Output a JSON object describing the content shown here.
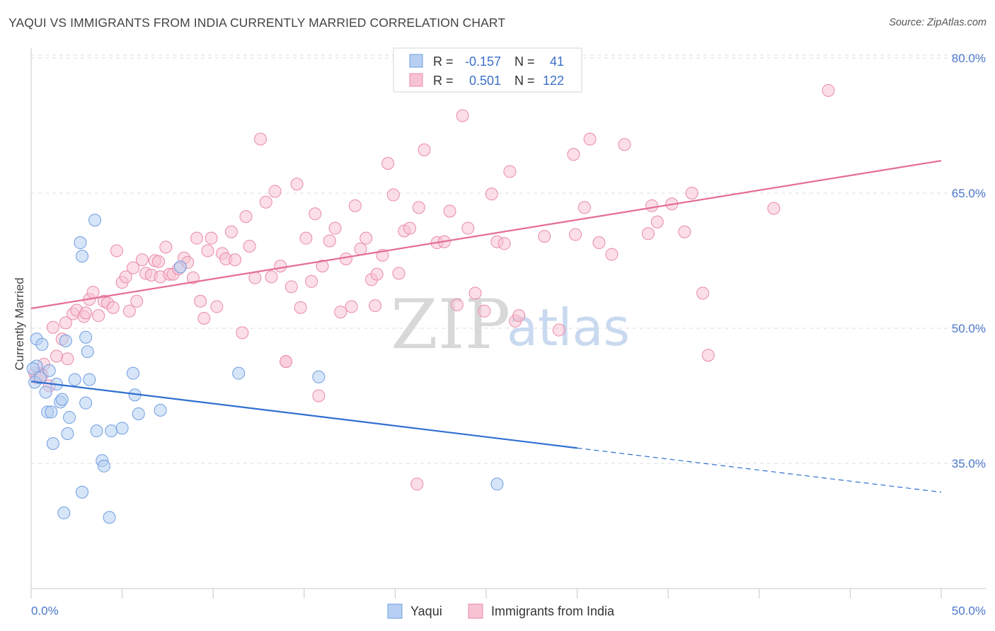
{
  "title": "YAQUI VS IMMIGRANTS FROM INDIA CURRENTLY MARRIED CORRELATION CHART",
  "source": "Source: ZipAtlas.com",
  "watermark": {
    "zip": "ZIP",
    "atlas": "atlas"
  },
  "colors": {
    "blue_fill": "#b7cff2",
    "blue_stroke": "#6f9de0",
    "blue_line": "#2f6fd0",
    "pink_fill": "#f7c3d3",
    "pink_stroke": "#e98aa8",
    "pink_line": "#e46d96",
    "tick": "#4b77c9",
    "grid": "#dcdcdc"
  },
  "legend_top": {
    "rows": [
      {
        "r_label": "R =",
        "r_value": "-0.157",
        "n_label": "N =",
        "n_value": "41"
      },
      {
        "r_label": "R =",
        "r_value": "0.501",
        "n_label": "N =",
        "n_value": "122"
      }
    ]
  },
  "legend_bottom": [
    "Yaqui",
    "Immigrants from India"
  ],
  "chart_data": {
    "type": "scatter",
    "title": "YAQUI VS IMMIGRANTS FROM INDIA CURRENTLY MARRIED CORRELATION CHART",
    "ylabel": "Currently Married",
    "xlabel": "",
    "xlim": [
      0,
      50
    ],
    "ylim": [
      20,
      83
    ],
    "x_tick_labels": [
      "0.0%",
      "50.0%"
    ],
    "y_ticks": [
      35,
      50,
      65,
      80
    ],
    "y_tick_labels": [
      "35.0%",
      "50.0%",
      "65.0%",
      "80.0%"
    ],
    "grid": "horizontal dashed",
    "series": [
      {
        "name": "Yaqui",
        "color": "#b7cff2",
        "trend": {
          "x0": 0,
          "y0": 44.1,
          "x1": 30,
          "y1": 36.7,
          "dashed_to_x": 50,
          "dashed_to_y": 31.8
        },
        "points": [
          [
            0.2,
            44.0
          ],
          [
            0.3,
            45.8
          ],
          [
            0.3,
            48.8
          ],
          [
            0.5,
            44.5
          ],
          [
            0.6,
            48.2
          ],
          [
            0.8,
            42.9
          ],
          [
            0.9,
            40.7
          ],
          [
            1.0,
            45.3
          ],
          [
            1.1,
            40.7
          ],
          [
            1.2,
            37.2
          ],
          [
            1.4,
            43.8
          ],
          [
            1.6,
            41.8
          ],
          [
            1.7,
            42.1
          ],
          [
            1.8,
            29.5
          ],
          [
            1.9,
            48.6
          ],
          [
            2.0,
            38.3
          ],
          [
            2.1,
            40.1
          ],
          [
            2.4,
            44.3
          ],
          [
            2.7,
            59.5
          ],
          [
            2.8,
            58.0
          ],
          [
            2.8,
            31.8
          ],
          [
            3.0,
            41.7
          ],
          [
            3.0,
            49.0
          ],
          [
            3.1,
            47.4
          ],
          [
            3.2,
            44.3
          ],
          [
            3.5,
            62.0
          ],
          [
            3.6,
            38.6
          ],
          [
            3.9,
            35.3
          ],
          [
            4.0,
            34.7
          ],
          [
            4.3,
            29.0
          ],
          [
            4.4,
            38.6
          ],
          [
            5.0,
            38.9
          ],
          [
            5.6,
            45.0
          ],
          [
            5.7,
            42.6
          ],
          [
            5.9,
            40.5
          ],
          [
            7.1,
            40.9
          ],
          [
            8.2,
            56.8
          ],
          [
            11.4,
            45.0
          ],
          [
            15.8,
            44.6
          ],
          [
            25.6,
            32.7
          ],
          [
            0.1,
            45.5
          ]
        ]
      },
      {
        "name": "Immigrants from India",
        "color": "#f7c3d3",
        "trend": {
          "x0": 0,
          "y0": 52.2,
          "x1": 50,
          "y1": 68.6
        },
        "points": [
          [
            0.2,
            45.0
          ],
          [
            0.3,
            44.5
          ],
          [
            0.5,
            45.0
          ],
          [
            0.6,
            44.8
          ],
          [
            0.7,
            46.0
          ],
          [
            1.0,
            43.6
          ],
          [
            1.2,
            50.1
          ],
          [
            1.4,
            46.9
          ],
          [
            1.7,
            48.8
          ],
          [
            1.9,
            50.6
          ],
          [
            2.0,
            46.6
          ],
          [
            2.3,
            51.6
          ],
          [
            2.5,
            52.0
          ],
          [
            2.9,
            51.3
          ],
          [
            3.0,
            51.7
          ],
          [
            3.2,
            53.2
          ],
          [
            3.4,
            54.0
          ],
          [
            3.7,
            51.4
          ],
          [
            4.0,
            53.0
          ],
          [
            4.2,
            52.8
          ],
          [
            4.5,
            52.3
          ],
          [
            4.7,
            58.6
          ],
          [
            5.0,
            55.1
          ],
          [
            5.2,
            55.7
          ],
          [
            5.4,
            51.9
          ],
          [
            5.6,
            56.7
          ],
          [
            5.8,
            53.0
          ],
          [
            6.1,
            57.6
          ],
          [
            6.3,
            56.1
          ],
          [
            6.6,
            55.9
          ],
          [
            6.8,
            57.5
          ],
          [
            7.0,
            57.4
          ],
          [
            7.1,
            55.7
          ],
          [
            7.4,
            59.0
          ],
          [
            7.6,
            56.0
          ],
          [
            7.8,
            56.0
          ],
          [
            8.1,
            56.6
          ],
          [
            8.4,
            57.8
          ],
          [
            8.6,
            57.3
          ],
          [
            8.9,
            55.6
          ],
          [
            9.1,
            60.0
          ],
          [
            9.3,
            53.0
          ],
          [
            9.5,
            51.1
          ],
          [
            9.7,
            58.6
          ],
          [
            9.9,
            60.0
          ],
          [
            10.2,
            52.4
          ],
          [
            10.5,
            58.3
          ],
          [
            10.7,
            57.7
          ],
          [
            11.0,
            60.7
          ],
          [
            11.2,
            57.6
          ],
          [
            11.6,
            49.5
          ],
          [
            11.8,
            62.4
          ],
          [
            12.0,
            59.1
          ],
          [
            12.3,
            55.6
          ],
          [
            12.6,
            71.0
          ],
          [
            12.9,
            64.0
          ],
          [
            13.2,
            55.7
          ],
          [
            13.4,
            65.2
          ],
          [
            13.7,
            56.9
          ],
          [
            14.0,
            46.3
          ],
          [
            14.3,
            54.6
          ],
          [
            14.6,
            66.0
          ],
          [
            14.8,
            52.3
          ],
          [
            15.1,
            60.0
          ],
          [
            15.4,
            55.2
          ],
          [
            15.6,
            62.7
          ],
          [
            16.0,
            56.9
          ],
          [
            16.4,
            59.7
          ],
          [
            16.7,
            61.1
          ],
          [
            17.0,
            51.8
          ],
          [
            17.3,
            57.7
          ],
          [
            17.6,
            52.4
          ],
          [
            17.8,
            63.6
          ],
          [
            18.1,
            58.8
          ],
          [
            18.4,
            60.0
          ],
          [
            18.7,
            55.4
          ],
          [
            19.0,
            56.0
          ],
          [
            19.3,
            58.1
          ],
          [
            19.6,
            68.3
          ],
          [
            19.9,
            64.8
          ],
          [
            20.2,
            56.1
          ],
          [
            20.5,
            60.8
          ],
          [
            20.8,
            61.1
          ],
          [
            21.3,
            63.4
          ],
          [
            21.6,
            69.8
          ],
          [
            22.3,
            59.5
          ],
          [
            22.7,
            59.6
          ],
          [
            23.0,
            63.0
          ],
          [
            23.4,
            52.6
          ],
          [
            23.7,
            73.6
          ],
          [
            24.0,
            61.1
          ],
          [
            24.4,
            53.9
          ],
          [
            24.9,
            51.9
          ],
          [
            25.3,
            64.9
          ],
          [
            25.6,
            59.6
          ],
          [
            26.0,
            59.4
          ],
          [
            26.3,
            67.4
          ],
          [
            26.6,
            50.8
          ],
          [
            26.8,
            51.4
          ],
          [
            28.2,
            60.2
          ],
          [
            29.0,
            49.8
          ],
          [
            29.8,
            69.3
          ],
          [
            29.9,
            60.4
          ],
          [
            30.4,
            63.4
          ],
          [
            30.7,
            71.0
          ],
          [
            31.2,
            59.5
          ],
          [
            31.9,
            58.2
          ],
          [
            32.6,
            70.4
          ],
          [
            33.9,
            60.5
          ],
          [
            34.1,
            63.6
          ],
          [
            34.4,
            61.8
          ],
          [
            35.2,
            63.8
          ],
          [
            35.9,
            60.7
          ],
          [
            36.3,
            65.0
          ],
          [
            36.9,
            53.9
          ],
          [
            37.2,
            47.0
          ],
          [
            40.8,
            63.3
          ],
          [
            43.8,
            76.4
          ],
          [
            15.8,
            42.5
          ],
          [
            18.9,
            52.5
          ],
          [
            21.2,
            32.7
          ],
          [
            14.0,
            46.3
          ]
        ]
      }
    ]
  }
}
